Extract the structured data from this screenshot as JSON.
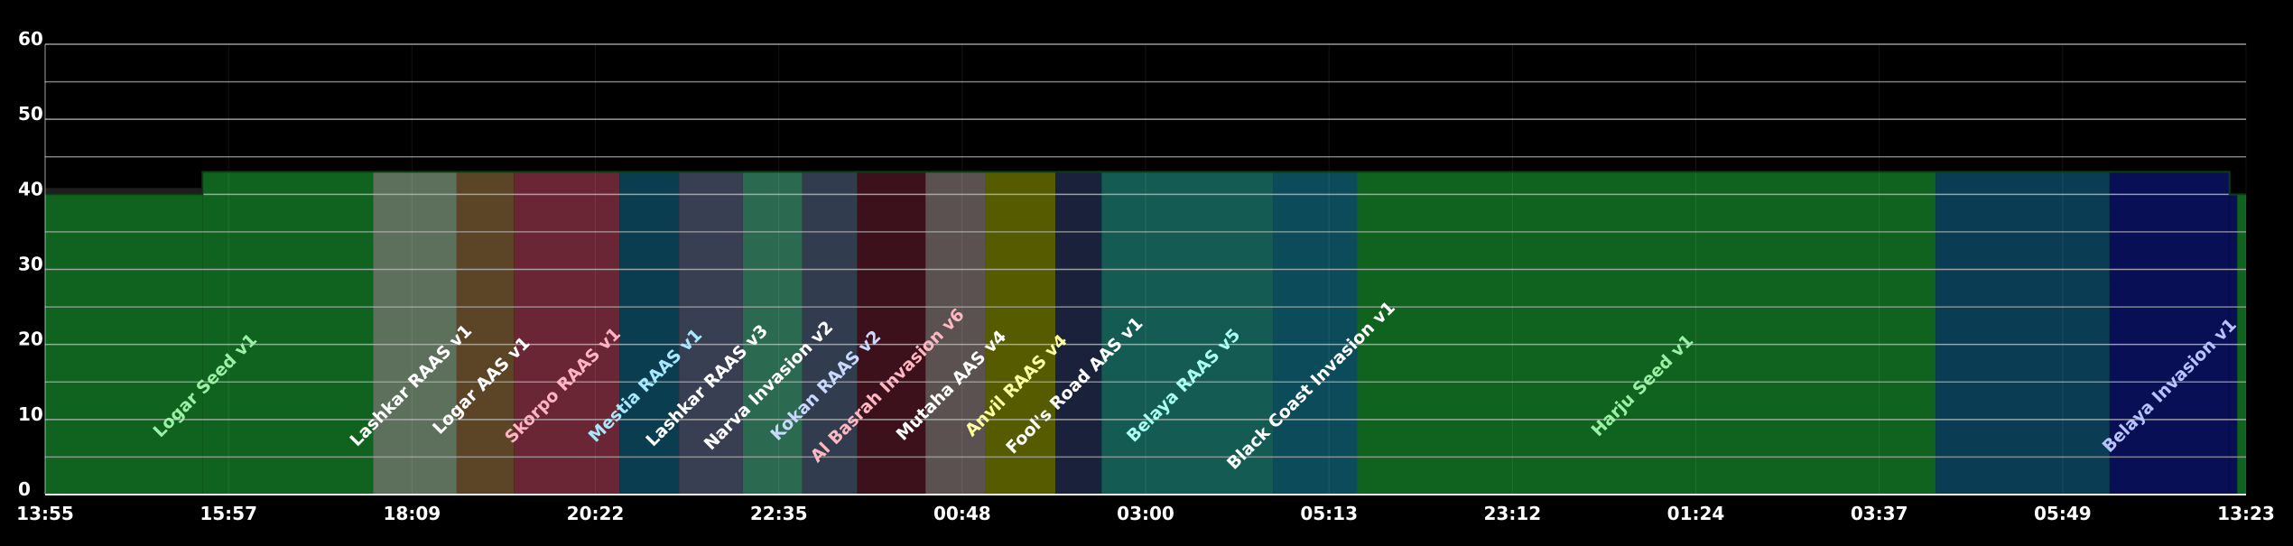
{
  "chart_data": {
    "type": "area",
    "title": "",
    "xlabel": "",
    "ylabel": "",
    "ylim": [
      0,
      60
    ],
    "grid": true,
    "legend": "none",
    "y_ticks": [
      0,
      10,
      20,
      30,
      40,
      50,
      60
    ],
    "x_ticks": [
      "13:55",
      "15:57",
      "18:09",
      "20:22",
      "22:35",
      "00:48",
      "03:00",
      "05:13",
      "23:12",
      "01:24",
      "03:37",
      "05:49",
      "13:23"
    ],
    "series": [
      {
        "values": [
          {
            "x": "13:55",
            "y": 40
          },
          {
            "x": "15:37",
            "y": 40
          },
          {
            "x": "15:37",
            "y": 43
          },
          {
            "x": "13:15",
            "y": 43
          },
          {
            "x": "13:15",
            "y": 40
          },
          {
            "x": "13:23",
            "y": 40
          }
        ]
      }
    ],
    "segments": [
      {
        "label": "Logar Seed v1",
        "start": 0.0,
        "end": 0.149,
        "color": "#0f631e",
        "text_color": "#9cf0a6"
      },
      {
        "label": "Lashkar RAAS v1",
        "start": 0.149,
        "end": 0.187,
        "color": "#5c705b",
        "text_color": "#ffffff"
      },
      {
        "label": "Logar AAS v1",
        "start": 0.187,
        "end": 0.213,
        "color": "#5c4427",
        "text_color": "#ffffff"
      },
      {
        "label": "Skorpo RAAS v1",
        "start": 0.213,
        "end": 0.261,
        "color": "#6a2635",
        "text_color": "#ffb3c3"
      },
      {
        "label": "Mestia RAAS v1",
        "start": 0.261,
        "end": 0.288,
        "color": "#0a3d4f",
        "text_color": "#a8e8ff"
      },
      {
        "label": "Lashkar RAAS v3",
        "start": 0.288,
        "end": 0.317,
        "color": "#393f52",
        "text_color": "#ffffff"
      },
      {
        "label": "Narva Invasion v2",
        "start": 0.317,
        "end": 0.344,
        "color": "#2b6a50",
        "text_color": "#ffffff"
      },
      {
        "label": "Kokan RAAS v2",
        "start": 0.344,
        "end": 0.369,
        "color": "#313d4e",
        "text_color": "#c9d8ff"
      },
      {
        "label": "Al Basrah Invasion v6",
        "start": 0.369,
        "end": 0.4,
        "color": "#3c111b",
        "text_color": "#ffb8c2"
      },
      {
        "label": "Mutaha AAS v4",
        "start": 0.4,
        "end": 0.427,
        "color": "#5c5151",
        "text_color": "#ffffff"
      },
      {
        "label": "Anvil RAAS v4",
        "start": 0.427,
        "end": 0.459,
        "color": "#565b00",
        "text_color": "#ffffa0"
      },
      {
        "label": "Fool's Road AAS v1",
        "start": 0.459,
        "end": 0.48,
        "color": "#19223a",
        "text_color": "#ffffff"
      },
      {
        "label": "Belaya RAAS v5",
        "start": 0.48,
        "end": 0.558,
        "color": "#145b53",
        "text_color": "#a8fff2"
      },
      {
        "label": "Black Coast Invasion v1",
        "start": 0.558,
        "end": 0.596,
        "color": "#0b4b5a",
        "text_color": "#ffffff"
      },
      {
        "label": "Harju Seed v1",
        "start": 0.596,
        "end": 0.859,
        "color": "#0f631e",
        "text_color": "#9cf0a6"
      },
      {
        "label": "",
        "start": 0.859,
        "end": 0.938,
        "color": "#0a3c53",
        "text_color": "#ffffff"
      },
      {
        "label": "Belaya Invasion v1",
        "start": 0.938,
        "end": 0.996,
        "color": "#080f55",
        "text_color": "#b8c2ff"
      },
      {
        "label": "",
        "start": 0.996,
        "end": 1.0,
        "color": "#0f631e",
        "text_color": "#ffffff"
      }
    ]
  },
  "colors": {
    "background": "#000000",
    "grid": "#b4b4b4",
    "text": "#ffffff"
  }
}
